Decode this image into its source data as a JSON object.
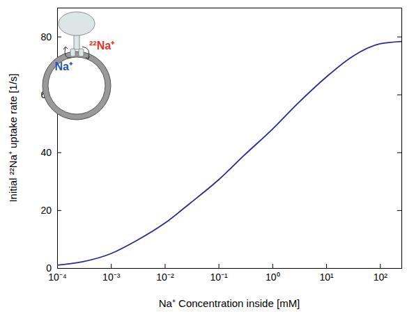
{
  "chart_data": {
    "type": "line",
    "x_label": "Na⁺ Concentration inside [mM]",
    "y_label": "Initial ²²Na⁺ uptake rate [1/s]",
    "log": "x",
    "grid": false,
    "xlim": [
      0.0001,
      250
    ],
    "ylim": [
      0,
      90
    ],
    "xticks": [
      {
        "value": 0.0001,
        "label": "10⁻⁴"
      },
      {
        "value": 0.001,
        "label": "10⁻³"
      },
      {
        "value": 0.01,
        "label": "10⁻²"
      },
      {
        "value": 0.1,
        "label": "10⁻¹"
      },
      {
        "value": 1,
        "label": "10⁰"
      },
      {
        "value": 10,
        "label": "10¹"
      },
      {
        "value": 100,
        "label": "10²"
      }
    ],
    "yticks": [
      0,
      20,
      40,
      60,
      80
    ],
    "x": [
      0.0001,
      0.0003,
      0.001,
      0.003,
      0.01,
      0.03,
      0.1,
      0.3,
      1,
      3,
      10,
      30,
      100,
      250
    ],
    "values": [
      1.0,
      2.2,
      5.0,
      9.5,
      15.5,
      22.5,
      30.5,
      39,
      48,
      57,
      66,
      73,
      77.5,
      78.3
    ],
    "color": "#2b2b8f",
    "annotations": [
      {
        "text": "²²Na⁺",
        "color": "#e5312a"
      },
      {
        "text": "Na⁺",
        "color": "#2456b3"
      }
    ]
  }
}
